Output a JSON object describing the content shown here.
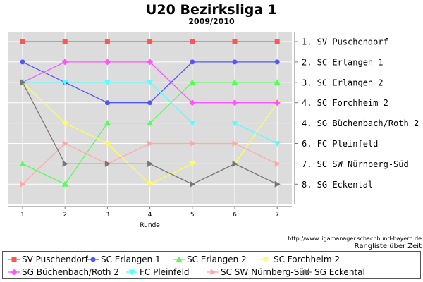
{
  "chart_data": {
    "type": "line",
    "title": "U20 Bezirksliga 1",
    "subtitle": "2009/2010",
    "xlabel": "Runde",
    "x": [
      1,
      2,
      3,
      4,
      5,
      6,
      7
    ],
    "ylim": [
      1,
      8
    ],
    "y_inverted": true,
    "grid": true,
    "right_axis_labels": [
      "1. SV Puschendorf",
      "2. SC Erlangen 1",
      "3. SC Erlangen 2",
      "4. SC Forchheim 2",
      "4. SG Büchenbach/Roth 2",
      "6. FC Pleinfeld",
      "7. SC SW Nürnberg-Süd",
      "8. SG Eckental"
    ],
    "series": [
      {
        "name": "SV Puschendorf",
        "color": "#ff5555",
        "marker": "square",
        "values": [
          1,
          1,
          1,
          1,
          1,
          1,
          1
        ]
      },
      {
        "name": "SC Erlangen 1",
        "color": "#5555ff",
        "marker": "circle",
        "values": [
          2,
          3,
          4,
          4,
          2,
          2,
          2
        ]
      },
      {
        "name": "SC Erlangen 2",
        "color": "#55ff55",
        "marker": "triangle-up",
        "values": [
          7,
          8,
          5,
          5,
          3,
          3,
          3
        ]
      },
      {
        "name": "SC Forchheim 2",
        "color": "#ffff55",
        "marker": "triangle-down",
        "values": [
          3,
          5,
          6,
          8,
          7,
          7,
          4
        ]
      },
      {
        "name": "SG Büchenbach/Roth 2",
        "color": "#ff55ff",
        "marker": "diamond",
        "values": [
          3,
          2,
          2,
          2,
          4,
          4,
          4
        ]
      },
      {
        "name": "FC Pleinfeld",
        "color": "#55ffff",
        "marker": "triangle-down",
        "values": [
          3,
          3,
          3,
          3,
          5,
          5,
          6
        ]
      },
      {
        "name": "SC SW Nürnberg-Süd",
        "color": "#ffaaaa",
        "marker": "triangle-right",
        "values": [
          8,
          6,
          7,
          6,
          6,
          6,
          7
        ]
      },
      {
        "name": "SG Eckental",
        "color": "#777777",
        "marker": "triangle-right",
        "values": [
          3,
          7,
          7,
          7,
          8,
          7,
          8
        ]
      }
    ],
    "legend_placement": "bottom",
    "source": "http://www.ligamanager.schachbund-bayern.de",
    "note": "Rangliste über Zeit"
  }
}
